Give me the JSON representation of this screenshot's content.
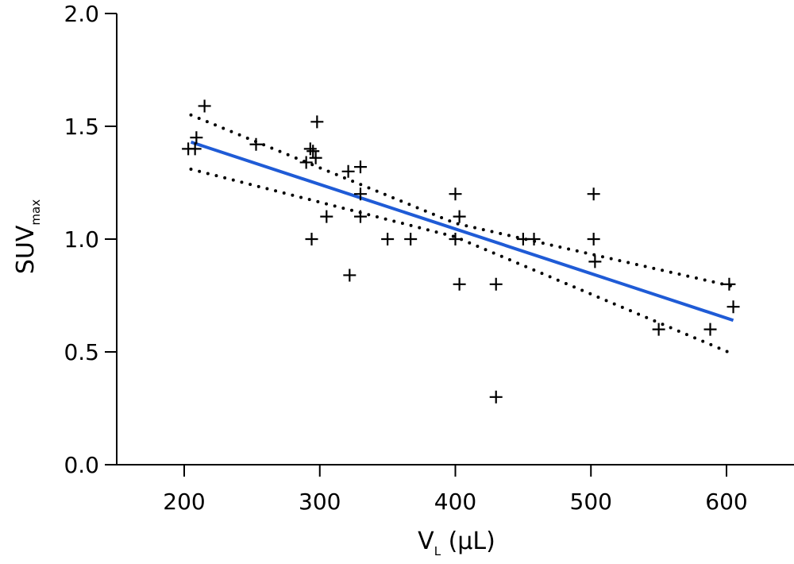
{
  "chart_data": {
    "type": "scatter",
    "title": "",
    "xlabel": "V",
    "xlabel_subscript": "L",
    "xlabel_unit": " (µL)",
    "ylabel": "SUV",
    "ylabel_subscript": "max",
    "xlim": [
      150,
      650
    ],
    "ylim": [
      0.0,
      2.0
    ],
    "xticks": [
      200,
      300,
      400,
      500,
      600
    ],
    "xtick_labels": [
      "200",
      "300",
      "400",
      "500",
      "600"
    ],
    "yticks": [
      0.0,
      0.5,
      1.0,
      1.5,
      2.0
    ],
    "ytick_labels": [
      "0.0",
      "0.5",
      "1.0",
      "1.5",
      "2.0"
    ],
    "grid": false,
    "colors": {
      "points": "#000000",
      "fit": "#1f5bd6",
      "confidence": "#000000"
    },
    "points": {
      "x": [
        203,
        208,
        209,
        215,
        253,
        290,
        293,
        295,
        297,
        298,
        294,
        305,
        321,
        322,
        330,
        330,
        330,
        350,
        367,
        400,
        400,
        403,
        403,
        430,
        430,
        450,
        458,
        502,
        502,
        503,
        550,
        588,
        602,
        605
      ],
      "y": [
        1.4,
        1.4,
        1.45,
        1.59,
        1.42,
        1.34,
        1.4,
        1.39,
        1.36,
        1.52,
        1.0,
        1.1,
        1.3,
        0.84,
        1.32,
        1.2,
        1.1,
        1.0,
        1.0,
        1.2,
        1.0,
        1.1,
        0.8,
        0.8,
        0.3,
        1.0,
        1.0,
        1.2,
        1.0,
        0.9,
        0.6,
        0.6,
        0.8,
        0.7
      ]
    },
    "fit_line": {
      "x": [
        205,
        605
      ],
      "y": [
        1.43,
        0.64
      ]
    },
    "confidence_upper": {
      "x": [
        205,
        400,
        605
      ],
      "y": [
        1.55,
        1.07,
        0.79
      ]
    },
    "confidence_lower": {
      "x": [
        205,
        400,
        605
      ],
      "y": [
        1.31,
        1.01,
        0.49
      ]
    }
  }
}
